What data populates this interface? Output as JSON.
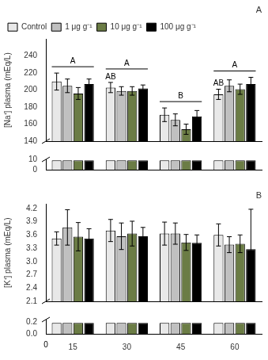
{
  "chart_data": [
    {
      "type": "bar",
      "title": "A",
      "y_label": "[Na⁺] plasma (mEq/L)",
      "categories": [
        "15",
        "30",
        "45",
        "60"
      ],
      "series": [
        {
          "name": "Control",
          "color": "#e8e8e8",
          "values": [
            210,
            203,
            171,
            195
          ],
          "errors": [
            10,
            6,
            8,
            6
          ]
        },
        {
          "name": "1 μg g⁻¹",
          "color": "#c0c0c0",
          "values": [
            205,
            199,
            165,
            205
          ],
          "errors": [
            8,
            5,
            7,
            7
          ]
        },
        {
          "name": "10 μg g⁻¹",
          "color": "#6b7c45",
          "values": [
            196,
            199,
            154,
            201
          ],
          "errors": [
            7,
            5,
            6,
            6
          ]
        },
        {
          "name": "100 μg g⁻¹",
          "color": "#000000",
          "values": [
            207,
            202,
            169,
            207
          ],
          "errors": [
            6,
            4,
            7,
            8
          ]
        }
      ],
      "ylim": [
        140,
        260
      ],
      "yticks": [
        140,
        160,
        180,
        200,
        220,
        240
      ],
      "grid": false,
      "legend": "upper left",
      "tick_labels": "y",
      "annotations": [
        {
          "text": "A",
          "category": "15"
        },
        {
          "text": "A",
          "category": "30"
        },
        {
          "text": "B",
          "category": "45"
        },
        {
          "text": "A",
          "category": "60"
        },
        {
          "text": "AB",
          "category": "30",
          "series": "Control"
        },
        {
          "text": "AB",
          "category": "60",
          "series": "Control"
        }
      ]
    },
    {
      "type": "bar",
      "categories": [
        "15",
        "30",
        "45",
        "60"
      ],
      "series": [
        {
          "color": "#e8e8e8",
          "values": [
            9.0,
            9.0,
            9.0,
            9.0
          ]
        },
        {
          "color": "#c0c0c0",
          "values": [
            9.0,
            9.0,
            9.0,
            9.0
          ]
        },
        {
          "color": "#6b7c45",
          "values": [
            9.0,
            9.0,
            9.0,
            9.0
          ]
        },
        {
          "color": "#000000",
          "values": [
            9.0,
            9.0,
            9.0,
            9.0
          ]
        }
      ],
      "ylim": [
        0,
        10
      ],
      "yticks": [
        0,
        10
      ],
      "grid": false,
      "tick_labels": "y"
    },
    {
      "type": "bar",
      "title": "B",
      "y_label": "[K⁺] plasma (mEq/L)",
      "categories": [
        "15",
        "30",
        "45",
        "60"
      ],
      "series": [
        {
          "name": "Control",
          "color": "#e8e8e8",
          "values": [
            3.52,
            3.7,
            3.63,
            3.6
          ],
          "errors": [
            0.15,
            0.25,
            0.26,
            0.25
          ]
        },
        {
          "name": "1 μg g⁻¹",
          "color": "#c0c0c0",
          "values": [
            3.77,
            3.57,
            3.63,
            3.38
          ],
          "errors": [
            0.4,
            0.3,
            0.24,
            0.18
          ]
        },
        {
          "name": "10 μg g⁻¹",
          "color": "#6b7c45",
          "values": [
            3.56,
            3.63,
            3.43,
            3.4
          ],
          "errors": [
            0.32,
            0.28,
            0.18,
            0.2
          ]
        },
        {
          "name": "100 μg g⁻¹",
          "color": "#000000",
          "values": [
            3.52,
            3.57,
            3.42,
            3.28
          ],
          "errors": [
            0.22,
            0.2,
            0.18,
            0.9
          ]
        }
      ],
      "ylim": [
        2.1,
        4.3
      ],
      "yticks": [
        2.1,
        2.4,
        2.7,
        {
          "value": 3.0,
          "label": "3.0"
        },
        3.3,
        3.6,
        3.9,
        4.2
      ],
      "grid": false,
      "tick_labels": "y"
    },
    {
      "type": "bar",
      "categories": [
        "15",
        "30",
        "45",
        "60"
      ],
      "series": [
        {
          "color": "#e8e8e8",
          "values": [
            0.19,
            0.19,
            0.19,
            0.19
          ]
        },
        {
          "color": "#c0c0c0",
          "values": [
            0.19,
            0.19,
            0.19,
            0.19
          ]
        },
        {
          "color": "#6b7c45",
          "values": [
            0.19,
            0.19,
            0.19,
            0.19
          ]
        },
        {
          "color": "#000000",
          "values": [
            0.19,
            0.19,
            0.19,
            0.19
          ]
        }
      ],
      "ylim": [
        0.0,
        0.25
      ],
      "yticks": [
        {
          "value": 0.0,
          "label": "0.0"
        },
        0.2
      ],
      "grid": false,
      "annotations": [
        {
          "text": "0"
        }
      ]
    }
  ]
}
